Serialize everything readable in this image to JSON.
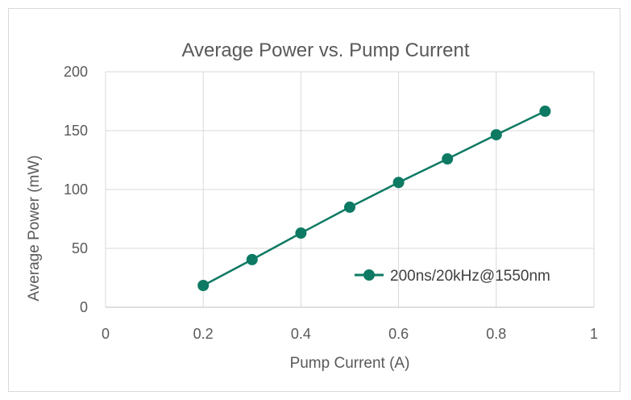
{
  "chart_data": {
    "type": "scatter",
    "title": "Average Power vs. Pump Current",
    "xlabel": "Pump Current (A)",
    "ylabel": "Average Power (mW)",
    "xlim": [
      0,
      1
    ],
    "ylim": [
      0,
      200
    ],
    "x_ticks": [
      "0",
      "0.2",
      "0.4",
      "0.6",
      "0.8",
      "1"
    ],
    "y_ticks": [
      "0",
      "50",
      "100",
      "150",
      "200"
    ],
    "grid": true,
    "legend_position": "right",
    "series": [
      {
        "name": "200ns/20kHz@1550nm",
        "color": "#0e7a63",
        "marker": "circle",
        "line": true,
        "x": [
          0.2,
          0.3,
          0.4,
          0.5,
          0.6,
          0.7,
          0.8,
          0.9
        ],
        "y": [
          18.5,
          40.5,
          63,
          85,
          106,
          126,
          146.5,
          166.5
        ]
      }
    ]
  }
}
